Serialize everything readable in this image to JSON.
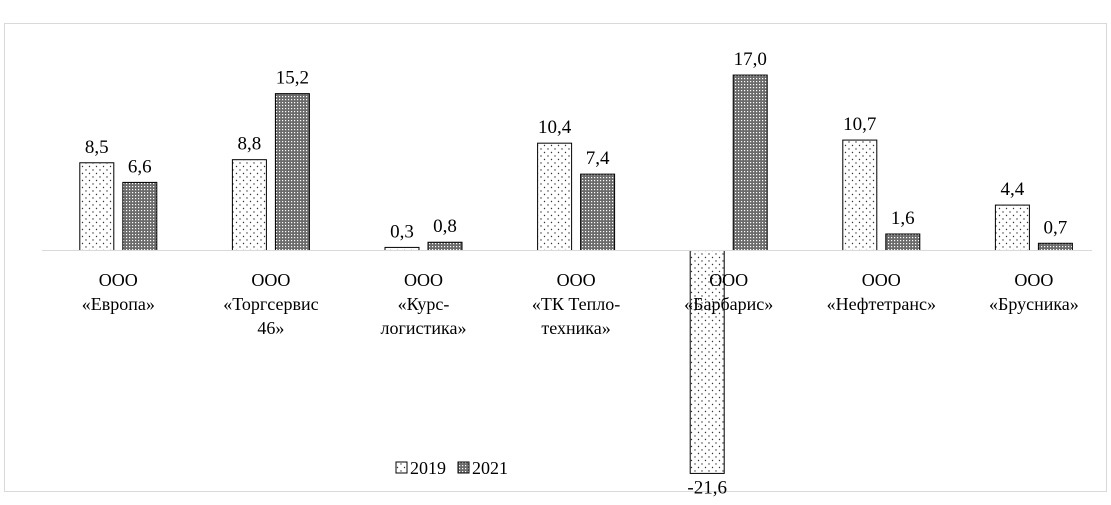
{
  "chart_data": {
    "type": "bar",
    "categories": [
      [
        "ООО",
        "«Европа»"
      ],
      [
        "ООО",
        "«Торгсервис",
        "46»"
      ],
      [
        "ООО",
        "«Курс-",
        "логистика»"
      ],
      [
        "ООО",
        "«ТК Тепло-",
        "техника»"
      ],
      [
        "ООО",
        "«Барбарис»"
      ],
      [
        "ООО",
        "«Нефтетранс»"
      ],
      [
        "ООО",
        "«Брусника»"
      ]
    ],
    "series": [
      {
        "name": "2019",
        "values": [
          8.5,
          8.8,
          0.3,
          10.4,
          -21.6,
          10.7,
          4.4
        ],
        "labels": [
          "8,5",
          "8,8",
          "0,3",
          "10,4",
          "-21,6",
          "10,7",
          "4,4"
        ],
        "pattern": "dots"
      },
      {
        "name": "2021",
        "values": [
          6.6,
          15.2,
          0.8,
          7.4,
          17.0,
          1.6,
          0.7
        ],
        "labels": [
          "6,6",
          "15,2",
          "0,8",
          "7,4",
          "17,0",
          "1,6",
          "0,7"
        ],
        "pattern": "dense"
      }
    ],
    "ylim": [
      -21.6,
      17.0
    ],
    "grid": false,
    "legend": "bottom"
  },
  "colors": {
    "border": "#d9d9d9",
    "axis": "#d9d9d9",
    "bar_stroke": "#000000",
    "dense_fill": "#8c8c8c"
  }
}
